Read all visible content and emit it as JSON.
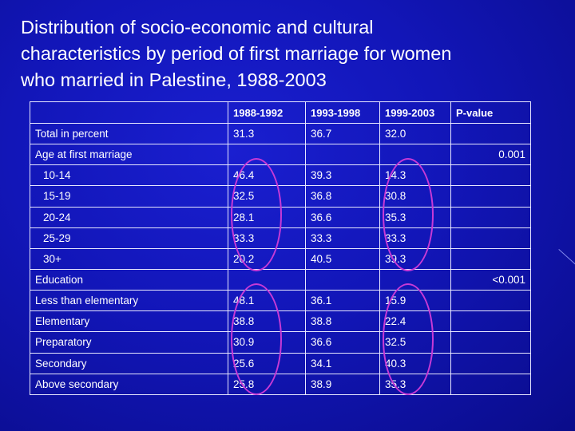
{
  "title": "Distribution of socio-economic and cultural\ncharacteristics by period of first marriage for women\nwho married in Palestine, 1988-2003",
  "table": {
    "headers": [
      "",
      "1988-1992",
      "1993-1998",
      "1999-2003",
      "P-value"
    ],
    "total_row": {
      "label": "Total in percent",
      "values": [
        "31.3",
        "36.7",
        "32.0",
        ""
      ]
    },
    "age_section": {
      "label": "Age at first marriage",
      "pvalue": "0.001"
    },
    "age_rows": [
      {
        "label": "10-14",
        "values": [
          "46.4",
          "39.3",
          "14.3"
        ]
      },
      {
        "label": "15-19",
        "values": [
          "32.5",
          "36.8",
          "30.8"
        ]
      },
      {
        "label": "20-24",
        "values": [
          "28.1",
          "36.6",
          "35.3"
        ]
      },
      {
        "label": "25-29",
        "values": [
          "33.3",
          "33.3",
          "33.3"
        ]
      },
      {
        "label": "30+",
        "values": [
          "20.2",
          "40.5",
          "39.3"
        ]
      }
    ],
    "education_section": {
      "label": "Education",
      "pvalue": "<0.001"
    },
    "education_rows": [
      {
        "label": "Less than elementary",
        "values": [
          "48.1",
          "36.1",
          "15.9"
        ]
      },
      {
        "label": "Elementary",
        "values": [
          "38.8",
          "38.8",
          "22.4"
        ]
      },
      {
        "label": "Preparatory",
        "values": [
          "30.9",
          "36.6",
          "32.5"
        ]
      },
      {
        "label": "Secondary",
        "values": [
          "25.6",
          "34.1",
          "40.3"
        ]
      },
      {
        "label": "Above secondary",
        "values": [
          "25.8",
          "38.9",
          "35.3"
        ]
      }
    ]
  },
  "colors": {
    "background": "#1216b8",
    "circle": "#c83ad6",
    "text": "#ffffff"
  }
}
